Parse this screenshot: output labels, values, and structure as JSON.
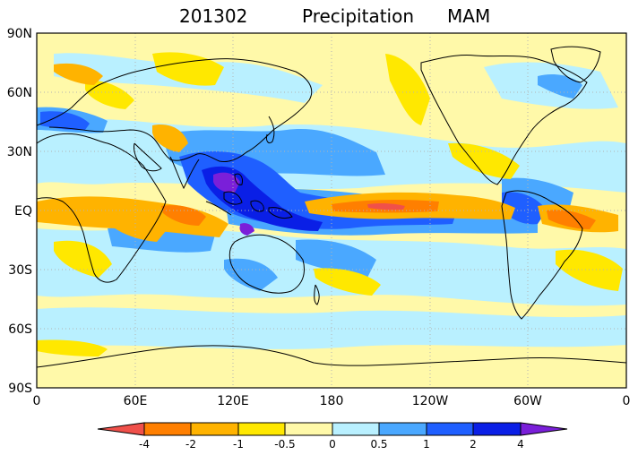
{
  "title": {
    "date": "201302",
    "variable": "Precipitation",
    "season": "MAM"
  },
  "map": {
    "projection": "cylindrical-equidistant",
    "lon_range": [
      0,
      360
    ],
    "lat_range": [
      -90,
      90
    ],
    "grid": "dotted",
    "lat_ticks": [
      "90N",
      "60N",
      "30N",
      "EQ",
      "30S",
      "60S",
      "90S"
    ],
    "lon_ticks": [
      "0",
      "60E",
      "120E",
      "180",
      "120W",
      "60W",
      "0"
    ],
    "ocean_background_color": "#fff9a9"
  },
  "colorbar": {
    "labels": [
      "-4",
      "-2",
      "-1",
      "-0.5",
      "0",
      "0.5",
      "1",
      "2",
      "4"
    ],
    "colors": [
      "#f0504a",
      "#ff7f00",
      "#ffb300",
      "#ffe800",
      "#fff9a9",
      "#b9f0ff",
      "#4aa8ff",
      "#1f5fff",
      "#0a1fe6",
      "#7a1fd9"
    ]
  }
}
